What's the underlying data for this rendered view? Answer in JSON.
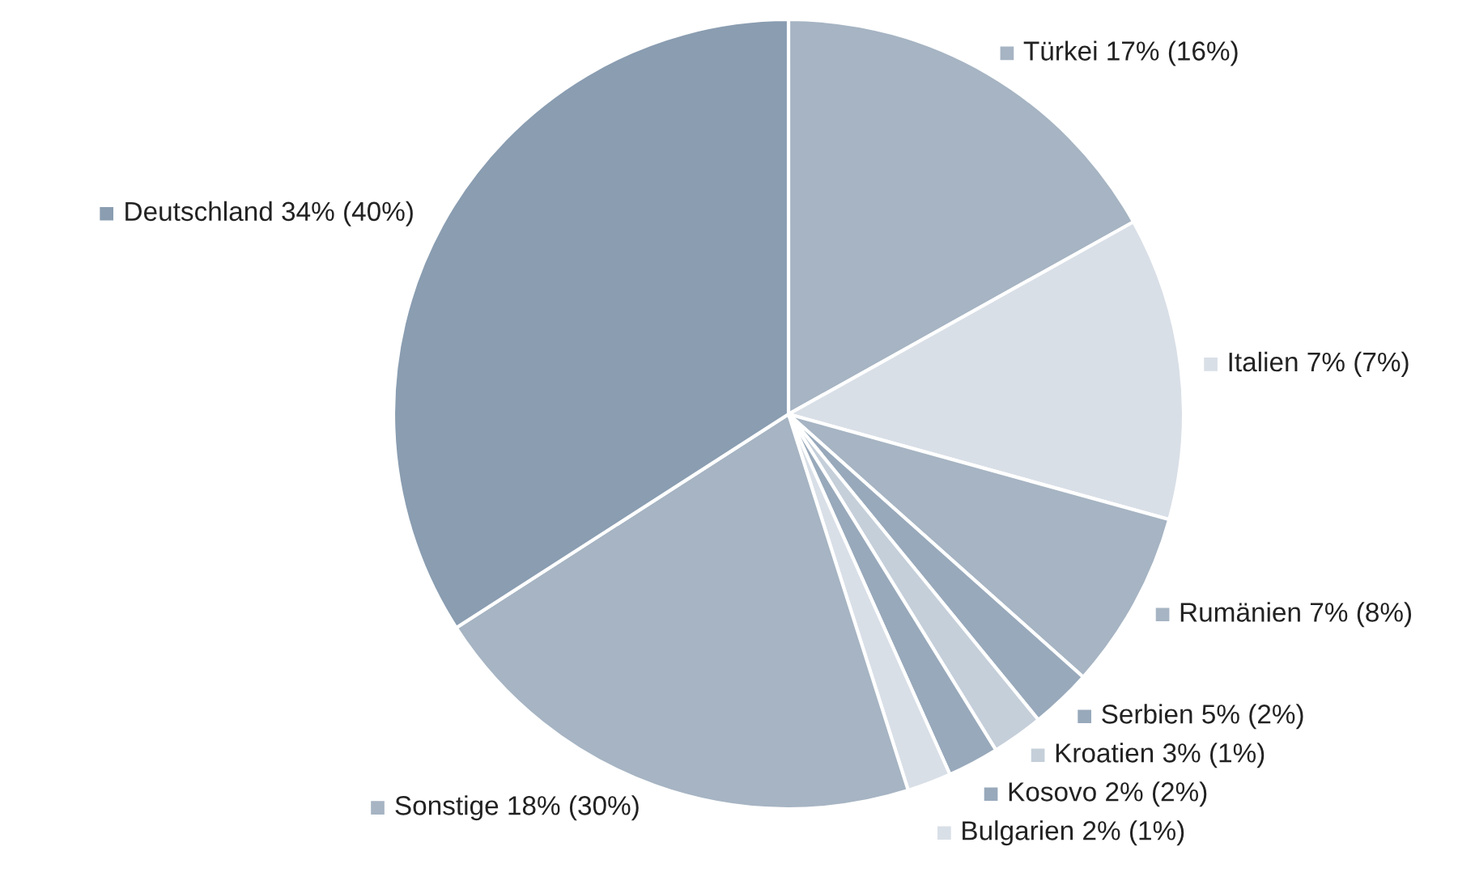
{
  "chart_data": {
    "type": "pie",
    "categories": [
      "Türkei 17% (16%)",
      "Italien 7% (7%)",
      "Rumänien 7% (8%)",
      "Serbien 5% (2%)",
      "Kroatien 3% (1%)",
      "Kosovo 2% (2%)",
      "Bulgarien 2% (1%)",
      "Sonstige 18% (30%)",
      "Deutschland 34% (40%)"
    ],
    "values": [
      16.9,
      12.4,
      7.3,
      2.5,
      2.1,
      2.1,
      1.8,
      20.8,
      34.1
    ],
    "colors": [
      "#a6b4c3",
      "#d9dfe7",
      "#a6b4c3",
      "#98a9bb",
      "#c5cfda",
      "#98a9bb",
      "#d9dfe7",
      "#a6b4c3",
      "#8a9db1"
    ],
    "legend": "right"
  }
}
